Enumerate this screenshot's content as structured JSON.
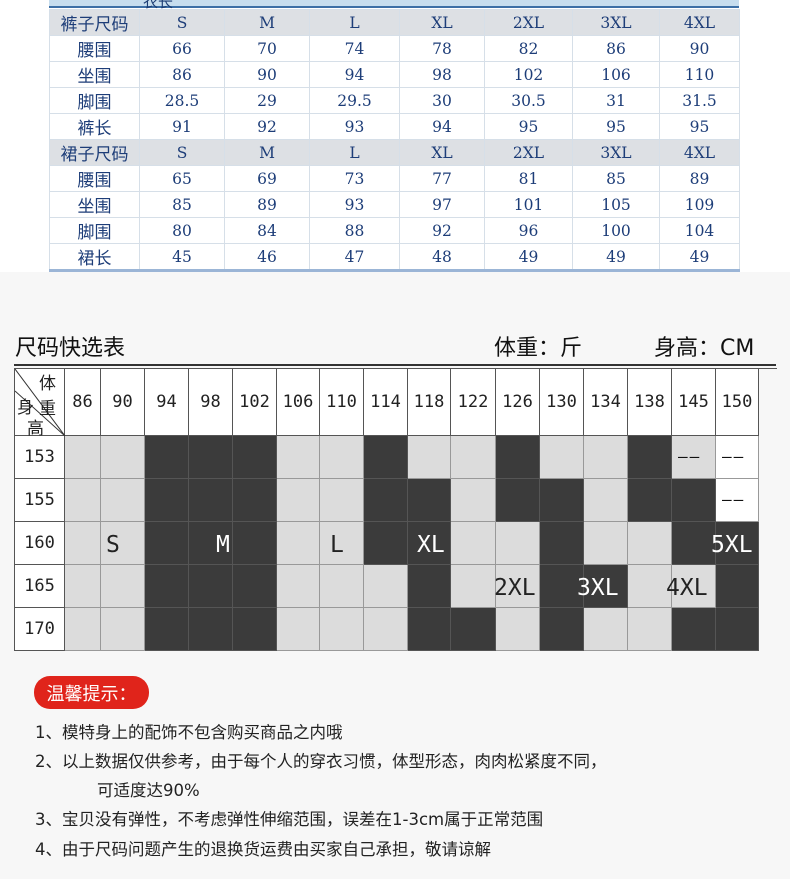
{
  "size_charts": {
    "top_row_label": "衣长",
    "pants": {
      "header": [
        "裤子尺码",
        "S",
        "M",
        "L",
        "XL",
        "2XL",
        "3XL",
        "4XL"
      ],
      "rows": [
        [
          "腰围",
          "66",
          "70",
          "74",
          "78",
          "82",
          "86",
          "90"
        ],
        [
          "坐围",
          "86",
          "90",
          "94",
          "98",
          "102",
          "106",
          "110"
        ],
        [
          "脚围",
          "28.5",
          "29",
          "29.5",
          "30",
          "30.5",
          "31",
          "31.5"
        ],
        [
          "裤长",
          "91",
          "92",
          "93",
          "94",
          "95",
          "95",
          "95"
        ]
      ]
    },
    "skirt": {
      "header": [
        "裙子尺码",
        "S",
        "M",
        "L",
        "XL",
        "2XL",
        "3XL",
        "4XL"
      ],
      "rows": [
        [
          "腰围",
          "65",
          "69",
          "73",
          "77",
          "81",
          "85",
          "89"
        ],
        [
          "坐围",
          "85",
          "89",
          "93",
          "97",
          "101",
          "105",
          "109"
        ],
        [
          "脚围",
          "80",
          "84",
          "88",
          "92",
          "96",
          "100",
          "104"
        ],
        [
          "裙长",
          "45",
          "46",
          "47",
          "48",
          "49",
          "49",
          "49"
        ]
      ]
    }
  },
  "quick_chart": {
    "title": "尺码快选表",
    "weight_unit": "体重：斤",
    "height_unit": "身高：CM",
    "corner": {
      "weight": "体重",
      "body": "身",
      "height": "高"
    },
    "weights": [
      "86",
      "90",
      "94",
      "98",
      "102",
      "106",
      "110",
      "114",
      "118",
      "122",
      "126",
      "130",
      "134",
      "138",
      "145",
      "150"
    ],
    "heights": [
      "153",
      "155",
      "160",
      "165",
      "170"
    ],
    "dash": "——",
    "zone_labels": [
      "S",
      "M",
      "L",
      "XL",
      "2XL",
      "3XL",
      "4XL",
      "5XL"
    ],
    "shading": [
      "LLDDDLLDLLDLLDL-",
      "LLDDDLLDDLDDLDD-",
      "LLDDDLLDDLLDLLDD",
      "LLDDDLLLDLLDDLLD",
      "LLDDDLLLDDLDLLDD"
    ],
    "colors": {
      "dark": "#3b3b3b",
      "light": "#dcdcdc"
    }
  },
  "tips": {
    "badge": "温馨提示：",
    "items": [
      "1、模特身上的配饰不包含购买商品之内哦",
      "2、以上数据仅供参考，由于每个人的穿衣习惯，体型形态，肉肉松紧度不同，",
      "可适度达90%",
      "3、宝贝没有弹性，不考虑弹性伸缩范围，误差在1-3cm属于正常范围",
      "4、由于尺码问题产生的退换货运费由买家自己承担，敬请谅解"
    ]
  }
}
